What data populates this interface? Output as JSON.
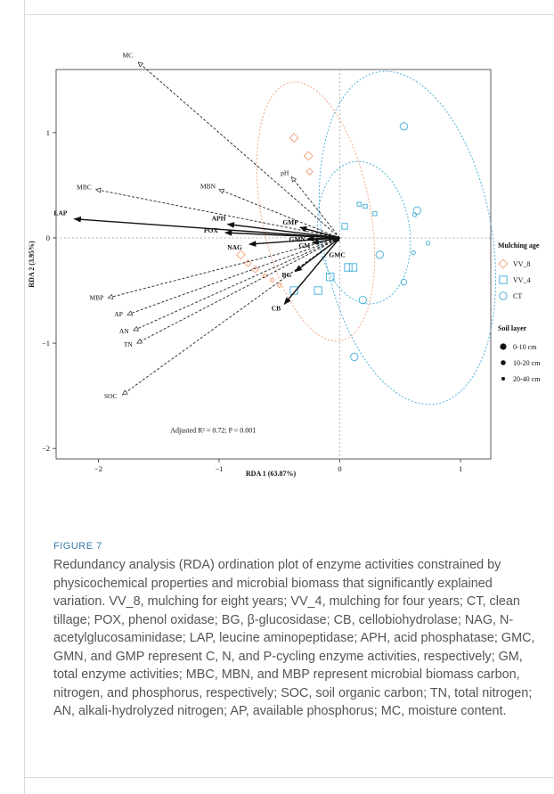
{
  "chart_data": {
    "type": "scatter",
    "title": "",
    "xlabel": "RDA 1 (63.87%)",
    "ylabel": "RDA 2 (3.95%)",
    "xlim": [
      -2.35,
      1.25
    ],
    "ylim": [
      -2.1,
      1.6
    ],
    "x_ticks": [
      -2,
      -1,
      0,
      1
    ],
    "y_ticks": [
      1,
      0,
      -1,
      -2
    ],
    "x_tick_labels": [
      "−2",
      "−1",
      "0",
      "1"
    ],
    "y_tick_labels": [
      "1",
      "0",
      "−1",
      "−2"
    ],
    "annotation": "Adjusted R² = 0.72; P = 0.001",
    "env_vectors": [
      {
        "name": "MC",
        "x": -1.67,
        "y": 1.67
      },
      {
        "name": "MBC",
        "x": -2.02,
        "y": 0.46
      },
      {
        "name": "MBN",
        "x": -1.0,
        "y": 0.46
      },
      {
        "name": "pH",
        "x": -0.4,
        "y": 0.58
      },
      {
        "name": "MBP",
        "x": -1.92,
        "y": -0.57
      },
      {
        "name": "AP",
        "x": -1.76,
        "y": -0.73
      },
      {
        "name": "AN",
        "x": -1.71,
        "y": -0.88
      },
      {
        "name": "TN",
        "x": -1.68,
        "y": -1.0
      },
      {
        "name": "SOC",
        "x": -1.8,
        "y": -1.49
      }
    ],
    "response_vectors": [
      {
        "name": "LAP",
        "x": -2.2,
        "y": 0.18
      },
      {
        "name": "APH",
        "x": -0.93,
        "y": 0.13
      },
      {
        "name": "POX",
        "x": -0.95,
        "y": 0.05
      },
      {
        "name": "NAG",
        "x": -0.75,
        "y": -0.06
      },
      {
        "name": "GMP",
        "x": -0.33,
        "y": 0.1
      },
      {
        "name": "GMN",
        "x": -0.27,
        "y": -0.01
      },
      {
        "name": "GM",
        "x": -0.23,
        "y": -0.05
      },
      {
        "name": "GMC",
        "x": -0.06,
        "y": -0.03
      },
      {
        "name": "BG",
        "x": -0.37,
        "y": -0.32
      },
      {
        "name": "CB",
        "x": -0.46,
        "y": -0.63
      }
    ],
    "groups": [
      {
        "name": "VV_8",
        "marker": "diamond",
        "color": "#f4a582",
        "ellipse": {
          "cx": -0.2,
          "cy": 0.25,
          "rx": 0.45,
          "ry": 1.25,
          "angle": -11
        }
      },
      {
        "name": "VV_4",
        "marker": "square",
        "color": "#4fb3d9",
        "ellipse": {
          "cx": 0.2,
          "cy": 0.05,
          "rx": 0.38,
          "ry": 0.68,
          "angle": -8
        }
      },
      {
        "name": "CT",
        "marker": "circle",
        "color": "#4fb3d9",
        "ellipse": {
          "cx": 0.56,
          "cy": 0.0,
          "rx": 0.7,
          "ry": 1.6,
          "angle": -10
        }
      }
    ],
    "points": [
      {
        "group": "VV_8",
        "x": -0.38,
        "y": 0.95,
        "layer": "0-10 cm"
      },
      {
        "group": "VV_8",
        "x": -0.26,
        "y": 0.78,
        "layer": "0-10 cm"
      },
      {
        "group": "VV_8",
        "x": -0.25,
        "y": 0.63,
        "layer": "10-20 cm"
      },
      {
        "group": "VV_8",
        "x": -0.82,
        "y": -0.16,
        "layer": "0-10 cm"
      },
      {
        "group": "VV_8",
        "x": -0.76,
        "y": -0.24,
        "layer": "10-20 cm"
      },
      {
        "group": "VV_8",
        "x": -0.7,
        "y": -0.3,
        "layer": "10-20 cm"
      },
      {
        "group": "VV_8",
        "x": -0.62,
        "y": -0.36,
        "layer": "20-40 cm"
      },
      {
        "group": "VV_8",
        "x": -0.56,
        "y": -0.4,
        "layer": "20-40 cm"
      },
      {
        "group": "VV_8",
        "x": -0.5,
        "y": -0.45,
        "layer": "20-40 cm"
      },
      {
        "group": "VV_4",
        "x": 0.07,
        "y": -0.28,
        "layer": "0-10 cm"
      },
      {
        "group": "VV_4",
        "x": 0.11,
        "y": -0.28,
        "layer": "0-10 cm"
      },
      {
        "group": "VV_4",
        "x": -0.18,
        "y": -0.5,
        "layer": "0-10 cm"
      },
      {
        "group": "VV_4",
        "x": -0.38,
        "y": -0.5,
        "layer": "0-10 cm"
      },
      {
        "group": "VV_4",
        "x": -0.08,
        "y": -0.37,
        "layer": "0-10 cm"
      },
      {
        "group": "VV_4",
        "x": 0.04,
        "y": 0.11,
        "layer": "10-20 cm"
      },
      {
        "group": "VV_4",
        "x": 0.16,
        "y": 0.32,
        "layer": "20-40 cm"
      },
      {
        "group": "VV_4",
        "x": 0.21,
        "y": 0.3,
        "layer": "20-40 cm"
      },
      {
        "group": "VV_4",
        "x": 0.29,
        "y": 0.23,
        "layer": "20-40 cm"
      },
      {
        "group": "CT",
        "x": 0.53,
        "y": 1.06,
        "layer": "0-10 cm"
      },
      {
        "group": "CT",
        "x": 0.64,
        "y": 0.26,
        "layer": "0-10 cm"
      },
      {
        "group": "CT",
        "x": 0.33,
        "y": -0.16,
        "layer": "0-10 cm"
      },
      {
        "group": "CT",
        "x": 0.19,
        "y": -0.59,
        "layer": "0-10 cm"
      },
      {
        "group": "CT",
        "x": 0.12,
        "y": -1.13,
        "layer": "0-10 cm"
      },
      {
        "group": "CT",
        "x": 0.53,
        "y": -0.42,
        "layer": "10-20 cm"
      },
      {
        "group": "CT",
        "x": 0.62,
        "y": 0.22,
        "layer": "20-40 cm"
      },
      {
        "group": "CT",
        "x": 0.73,
        "y": -0.05,
        "layer": "20-40 cm"
      },
      {
        "group": "CT",
        "x": 0.61,
        "y": -0.14,
        "layer": "20-40 cm"
      }
    ],
    "legend": {
      "position": "right",
      "group_title": "Mulching age",
      "layer_title": "Soil layer",
      "layers": [
        {
          "label": "0-10 cm",
          "size": "large"
        },
        {
          "label": "10-20 cm",
          "size": "medium"
        },
        {
          "label": "20-40 cm",
          "size": "small"
        }
      ]
    },
    "grid": false
  },
  "figure": {
    "label": "FIGURE 7",
    "caption": "Redundancy analysis (RDA) ordination plot of enzyme activities constrained by physicochemical properties and microbial biomass that significantly explained variation. VV_8, mulching for eight years; VV_4, mulching for four years; CT, clean tillage; POX, phenol oxidase; BG, β-glucosidase; CB, cellobiohydrolase; NAG, N-acetylglucosaminidase; LAP, leucine aminopeptidase; APH, acid phosphatase; GMC, GMN, and GMP represent C, N, and P-cycling enzyme activities, respectively; GM, total enzyme activities; MBC, MBN, and MBP represent microbial biomass carbon, nitrogen, and phosphorus, respectively; SOC, soil organic carbon; TN, total nitrogen; AN, alkali-hydrolyzed nitrogen; AP, available phosphorus; MC, moisture content."
  }
}
